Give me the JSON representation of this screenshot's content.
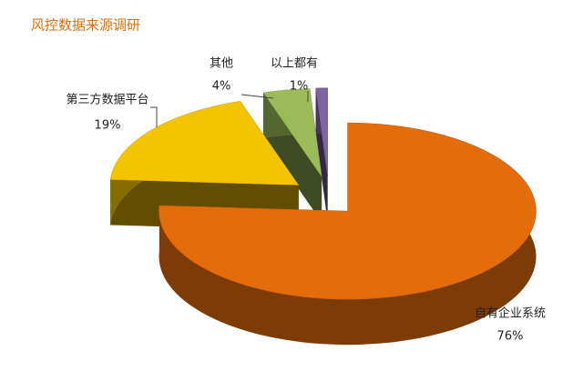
{
  "chart_data": {
    "type": "pie",
    "title": "风控数据来源调研",
    "categories": [
      "自有企业系统",
      "第三方数据平台",
      "其他",
      "以上都有"
    ],
    "values": [
      76,
      19,
      4,
      1
    ],
    "value_labels": [
      "76%",
      "19%",
      "4%",
      "1%"
    ],
    "colors": [
      "#e46c0a",
      "#f5c400",
      "#9bbb59",
      "#8064a2"
    ]
  }
}
